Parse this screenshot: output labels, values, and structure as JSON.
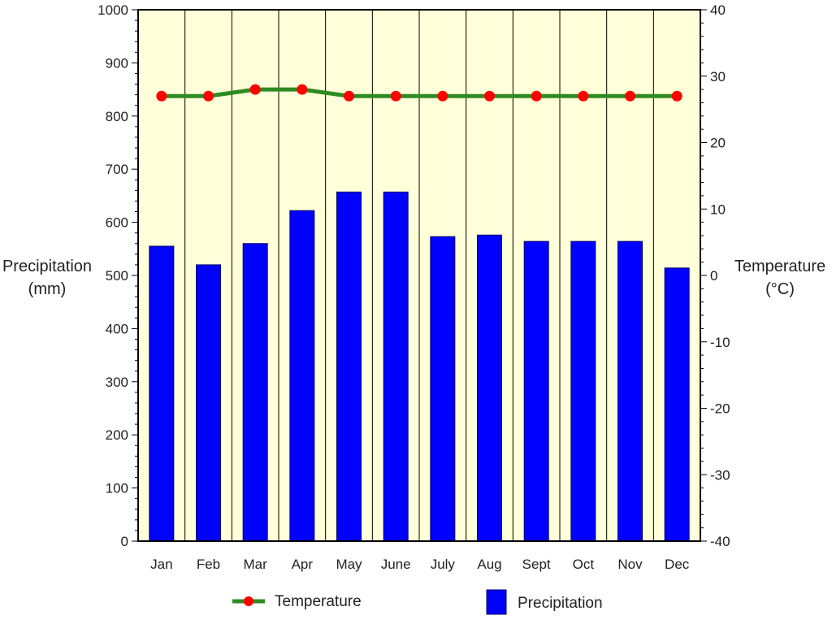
{
  "chart_data": {
    "type": "bar",
    "categories": [
      "Jan",
      "Feb",
      "Mar",
      "Apr",
      "May",
      "June",
      "July",
      "Aug",
      "Sept",
      "Oct",
      "Nov",
      "Dec"
    ],
    "series": [
      {
        "name": "Precipitation",
        "type": "bar",
        "axis": "left",
        "values": [
          555,
          520,
          560,
          622,
          657,
          657,
          573,
          576,
          564,
          564,
          564,
          514
        ]
      },
      {
        "name": "Temperature",
        "type": "line",
        "axis": "right",
        "values": [
          27,
          27,
          28,
          28,
          27,
          27,
          27,
          27,
          27,
          27,
          27,
          27
        ]
      }
    ],
    "y_left": {
      "label_line1": "Precipitation",
      "label_line2": "(mm)",
      "lim": [
        0,
        1000
      ],
      "ticks": [
        "0",
        "100",
        "200",
        "300",
        "400",
        "500",
        "600",
        "700",
        "800",
        "900",
        "1000"
      ]
    },
    "y_right": {
      "label_line1": "Temperature",
      "label_line2": "(°C)",
      "lim": [
        -40,
        40
      ],
      "ticks": [
        "-40",
        "-30",
        "-20",
        "-10",
        "0",
        "10",
        "20",
        "30",
        "40"
      ]
    },
    "legend": {
      "placement": "bottom",
      "temperature_label": "Temperature",
      "precipitation_label": "Precipitation"
    },
    "colors": {
      "plot_background": "#ffffd9",
      "bar": "#0000ff",
      "bar_edge": "#000066",
      "line": "#2e8b22",
      "marker": "#ff0000",
      "gridline": "#000000"
    },
    "grid": "vertical"
  }
}
